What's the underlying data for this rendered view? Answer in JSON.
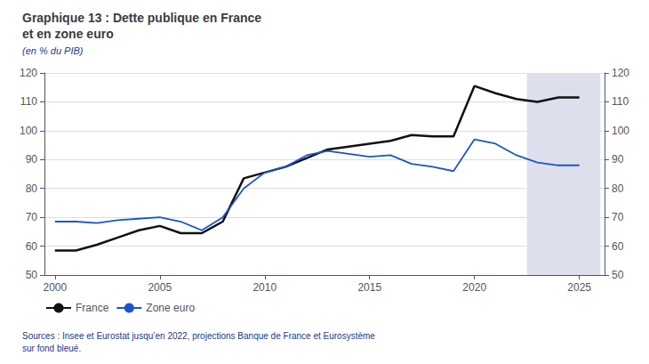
{
  "chart_data": {
    "type": "line",
    "title": "Graphique 13 : Dette publique en France\net en zone euro",
    "subtitle": "(en % du PIB)",
    "source": "Sources : Insee et Eurostat jusqu’en 2022, projections Banque de France et Eurosystème\nsur fond bleué.",
    "x": [
      2000,
      2001,
      2002,
      2003,
      2004,
      2005,
      2006,
      2007,
      2008,
      2009,
      2010,
      2011,
      2012,
      2013,
      2014,
      2015,
      2016,
      2017,
      2018,
      2019,
      2020,
      2021,
      2022,
      2023,
      2024,
      2025
    ],
    "series": [
      {
        "name": "France",
        "color": "#111111",
        "values": [
          58.5,
          58.5,
          60.5,
          63.0,
          65.5,
          67.0,
          64.5,
          64.5,
          68.5,
          83.5,
          85.5,
          87.5,
          90.5,
          93.5,
          94.5,
          95.5,
          96.5,
          98.5,
          98.0,
          98.0,
          115.5,
          113.0,
          111.0,
          110.0,
          111.5,
          111.5
        ]
      },
      {
        "name": "Zone euro",
        "color": "#1a55cc",
        "values": [
          68.5,
          68.5,
          68.0,
          69.0,
          69.5,
          70.0,
          68.5,
          65.5,
          70.0,
          80.0,
          85.5,
          87.5,
          91.5,
          93.0,
          92.0,
          91.0,
          91.5,
          88.5,
          87.5,
          86.0,
          97.0,
          95.5,
          91.5,
          89.0,
          88.0,
          88.0
        ]
      }
    ],
    "shaded_range": [
      2022.5,
      2026
    ],
    "shaded_color": "#dde0ec",
    "xlim": [
      1999.5,
      2026.2
    ],
    "xticks": [
      2000,
      2005,
      2010,
      2015,
      2020,
      2025
    ],
    "ylim": [
      50,
      120
    ],
    "yticks": [
      50,
      60,
      70,
      80,
      90,
      100,
      110,
      120
    ],
    "y2lim": [
      50,
      120
    ],
    "y2ticks": [
      50,
      60,
      70,
      80,
      90,
      100,
      110,
      120
    ],
    "grid": true,
    "legend": "bottom"
  }
}
